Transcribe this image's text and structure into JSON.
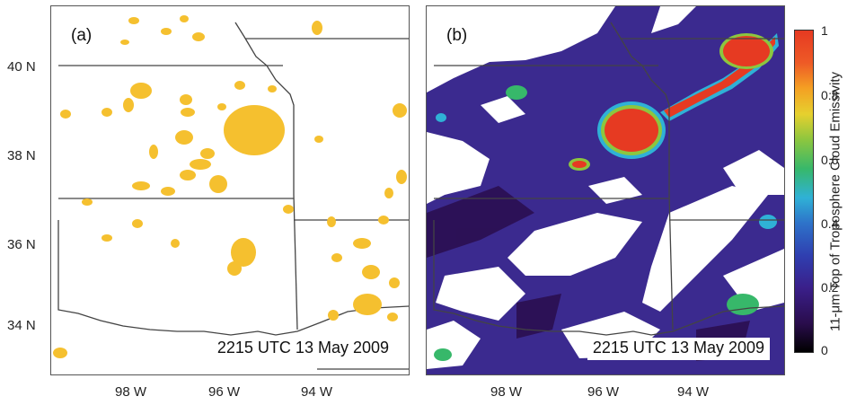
{
  "panels": [
    {
      "label": "(a)",
      "timestamp": "2215 UTC 13 May 2009",
      "fill_color": "#f5c02f"
    },
    {
      "label": "(b)",
      "timestamp": "2215 UTC 13 May 2009",
      "background_color": "#3b2a8f"
    }
  ],
  "latitude_ticks": [
    "40 N",
    "38 N",
    "36 N",
    "34 N"
  ],
  "longitude_ticks": [
    "98 W",
    "96 W",
    "94 W"
  ],
  "colorbar": {
    "label": "11-μm Top of Troposphere Cloud Emissivity",
    "ticks": [
      "1",
      "0.8",
      "0.6",
      "0.4",
      "0.2",
      "0"
    ],
    "range": [
      0,
      1
    ]
  },
  "colors": {
    "border": "#555555",
    "boundary_line": "#444444",
    "high_emissivity": "#e63a22",
    "low_emissivity": "#2a0d4d"
  }
}
